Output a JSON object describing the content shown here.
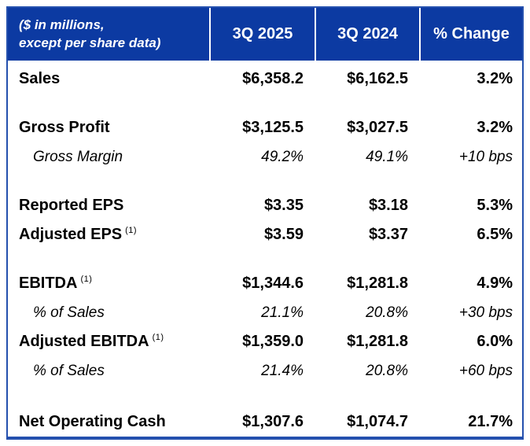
{
  "colors": {
    "header_bg": "#0c3aa2",
    "header_text": "#ffffff",
    "border_blue": "#2450ae",
    "body_text": "#000000"
  },
  "table": {
    "header": {
      "note_line1": "($ in millions,",
      "note_line2": "except per share data)",
      "col1": "3Q 2025",
      "col2": "3Q 2024",
      "col3": "% Change"
    },
    "rows": [
      {
        "label": "Sales",
        "sup": "",
        "v2025": "$6,358.2",
        "v2024": "$6,162.5",
        "chg": "3.2%"
      },
      {
        "label": "Gross Profit",
        "sup": "",
        "v2025": "$3,125.5",
        "v2024": "$3,027.5",
        "chg": "3.2%"
      },
      {
        "label": "Gross Margin",
        "sup": "",
        "v2025": "49.2%",
        "v2024": "49.1%",
        "chg": "+10 bps"
      },
      {
        "label": "Reported EPS",
        "sup": "",
        "v2025": "$3.35",
        "v2024": "$3.18",
        "chg": "5.3%"
      },
      {
        "label": "Adjusted EPS",
        "sup": "(1)",
        "v2025": "$3.59",
        "v2024": "$3.37",
        "chg": "6.5%"
      },
      {
        "label": "EBITDA",
        "sup": "(1)",
        "v2025": "$1,344.6",
        "v2024": "$1,281.8",
        "chg": "4.9%"
      },
      {
        "label": "% of Sales",
        "sup": "",
        "v2025": "21.1%",
        "v2024": "20.8%",
        "chg": "+30 bps"
      },
      {
        "label": "Adjusted EBITDA",
        "sup": "(1)",
        "v2025": "$1,359.0",
        "v2024": "$1,281.8",
        "chg": "6.0%"
      },
      {
        "label": "% of Sales",
        "sup": "",
        "v2025": "21.4%",
        "v2024": "20.8%",
        "chg": "+60 bps"
      },
      {
        "label": "Net Operating Cash",
        "sup": "",
        "v2025": "$1,307.6",
        "v2024": "$1,074.7",
        "chg": "21.7%"
      }
    ]
  },
  "chart_data": {
    "type": "table",
    "title": "($ in millions, except per share data)",
    "columns": [
      "Metric",
      "3Q 2025",
      "3Q 2024",
      "% Change"
    ],
    "rows": [
      [
        "Sales",
        "$6,358.2",
        "$6,162.5",
        "3.2%"
      ],
      [
        "Gross Profit",
        "$3,125.5",
        "$3,027.5",
        "3.2%"
      ],
      [
        "Gross Margin",
        "49.2%",
        "49.1%",
        "+10 bps"
      ],
      [
        "Reported EPS",
        "$3.35",
        "$3.18",
        "5.3%"
      ],
      [
        "Adjusted EPS (1)",
        "$3.59",
        "$3.37",
        "6.5%"
      ],
      [
        "EBITDA (1)",
        "$1,344.6",
        "$1,281.8",
        "4.9%"
      ],
      [
        "% of Sales",
        "21.1%",
        "20.8%",
        "+30 bps"
      ],
      [
        "Adjusted EBITDA (1)",
        "$1,359.0",
        "$1,281.8",
        "6.0%"
      ],
      [
        "% of Sales",
        "21.4%",
        "20.8%",
        "+60 bps"
      ],
      [
        "Net Operating Cash",
        "$1,307.6",
        "$1,074.7",
        "21.7%"
      ]
    ]
  }
}
